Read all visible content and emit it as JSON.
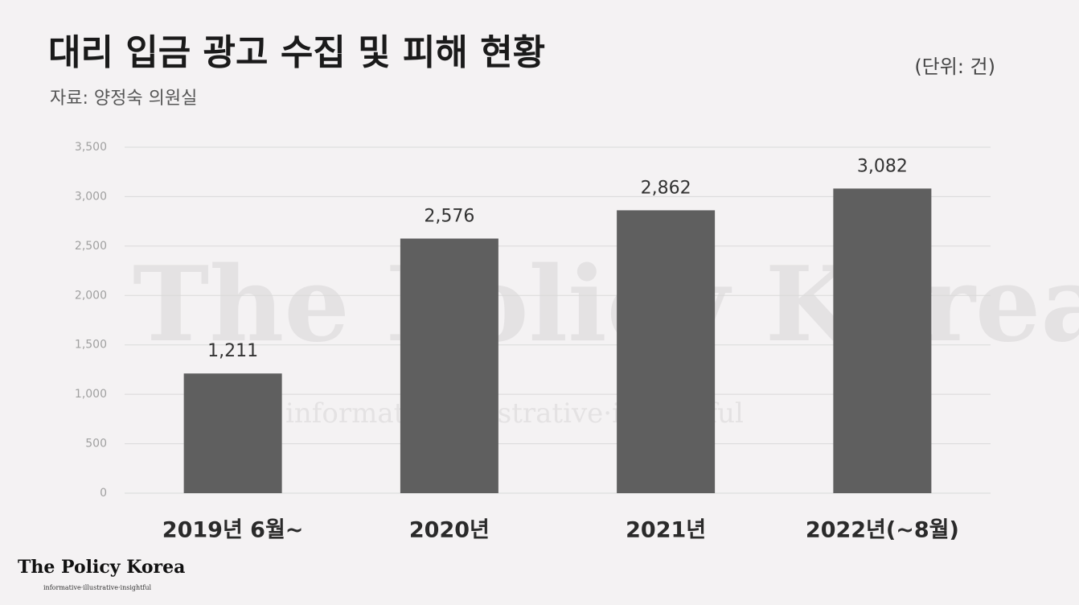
{
  "chart_data": {
    "type": "bar",
    "title": "대리 입금 광고 수집 및 피해 현황",
    "subtitle": "자료: 양정숙 의원실",
    "unit": "(단위: 건)",
    "categories": [
      "2019년 6월~",
      "2020년",
      "2021년",
      "2022년(~8월)"
    ],
    "values": [
      1211,
      2576,
      2862,
      3082
    ],
    "value_labels": [
      "1,211",
      "2,576",
      "2,862",
      "3,082"
    ],
    "color": "#5f5f5f",
    "ylim": [
      0,
      3500
    ],
    "yticks": [
      0,
      500,
      {
        "value": 1000,
        "label": "1,000"
      },
      {
        "value": 1500,
        "label": "1,500"
      },
      {
        "value": 2000,
        "label": "2,000"
      },
      {
        "value": 2500,
        "label": "2,500"
      },
      {
        "value": 3000,
        "label": "3,000"
      },
      {
        "value": 3500,
        "label": "3,500"
      }
    ],
    "grid": true
  },
  "branding": {
    "name": "The Policy Korea",
    "tagline": "informative·illustrative·insightful"
  }
}
